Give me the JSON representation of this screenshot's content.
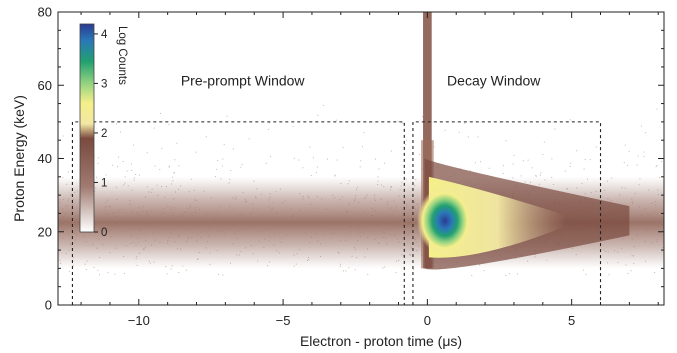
{
  "chart_data": {
    "type": "heatmap",
    "xlabel": "Electron - proton time (μs)",
    "ylabel": "Proton Energy (keV)",
    "xlim": [
      -12.8,
      8.2
    ],
    "ylim": [
      0,
      80
    ],
    "xticks": [
      -10,
      -5,
      0,
      5
    ],
    "yticks": [
      0,
      20,
      40,
      60,
      80
    ],
    "grid": false,
    "colorbar": {
      "label": "Log Counts",
      "ticks": [
        0,
        1,
        2,
        3,
        4
      ],
      "range": [
        0,
        4.2
      ],
      "colors": [
        "#ffffff",
        "#a07a70",
        "#7a4a3e",
        "#f2e7a3",
        "#f5ef8a",
        "#8ed080",
        "#22a070",
        "#2a78b8",
        "#2b3a92"
      ],
      "placement": "inside-top-left"
    },
    "bands": [
      {
        "name": "proton-band",
        "x_range": [
          -12.8,
          8.2
        ],
        "y_range": [
          10,
          35
        ],
        "center_energy": 23,
        "intensity": 1.4
      },
      {
        "name": "prompt-spike",
        "x_range": [
          -0.15,
          0.15
        ],
        "y_range": [
          10,
          80
        ],
        "intensity": 1.3
      },
      {
        "name": "decay-peak",
        "x_peak": 0.4,
        "y_peak": 23,
        "peak_log_counts": 4.2,
        "decay_time": 2.2
      }
    ],
    "windows": [
      {
        "label": "Pre-prompt Window",
        "x_range": [
          -12.3,
          -0.8
        ],
        "y_range": [
          0,
          50
        ]
      },
      {
        "label": "Decay Window",
        "x_range": [
          -0.5,
          6.0
        ],
        "y_range": [
          0,
          50
        ]
      }
    ]
  }
}
